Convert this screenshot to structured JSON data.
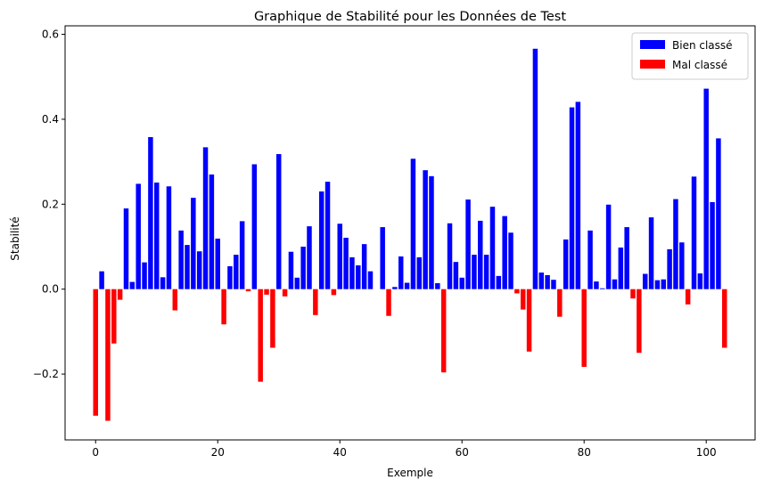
{
  "chart_data": {
    "type": "bar",
    "title": "Graphique de Stabilité pour les Données de Test",
    "xlabel": "Exemple",
    "ylabel": "Stabilité",
    "xlim": [
      -5,
      108
    ],
    "ylim": [
      -0.355,
      0.62
    ],
    "xticks": [
      0,
      20,
      40,
      60,
      80,
      100
    ],
    "xtick_labels": [
      "0",
      "20",
      "40",
      "60",
      "80",
      "100"
    ],
    "yticks": [
      -0.2,
      0.0,
      0.2,
      0.4,
      0.6
    ],
    "ytick_labels": [
      "−0.2",
      "0.0",
      "0.2",
      "0.4",
      "0.6"
    ],
    "grid": false,
    "legend_position": "top-right",
    "colors": {
      "Bien classé": "#0000ff",
      "Mal classé": "#ff0000"
    },
    "series": [
      {
        "name": "Bien classé",
        "x": [
          1,
          5,
          6,
          7,
          8,
          9,
          10,
          11,
          12,
          14,
          15,
          16,
          17,
          18,
          19,
          20,
          22,
          23,
          24,
          26,
          30,
          32,
          33,
          34,
          35,
          37,
          38,
          40,
          41,
          42,
          43,
          44,
          45,
          47,
          49,
          50,
          51,
          52,
          53,
          54,
          55,
          56,
          58,
          59,
          60,
          61,
          62,
          63,
          64,
          65,
          66,
          67,
          68,
          72,
          73,
          74,
          75,
          77,
          78,
          79,
          81,
          82,
          83,
          84,
          85,
          86,
          87,
          90,
          91,
          92,
          93,
          94,
          95,
          96,
          98,
          99,
          100,
          101,
          102
        ],
        "values": [
          0.042,
          0.19,
          0.017,
          0.248,
          0.063,
          0.358,
          0.251,
          0.028,
          0.242,
          0.138,
          0.104,
          0.215,
          0.089,
          0.334,
          0.27,
          0.119,
          0.054,
          0.081,
          0.16,
          0.294,
          0.318,
          0.088,
          0.027,
          0.1,
          0.148,
          0.23,
          0.253,
          0.154,
          0.121,
          0.075,
          0.056,
          0.106,
          0.042,
          0.146,
          0.005,
          0.077,
          0.015,
          0.307,
          0.075,
          0.28,
          0.266,
          0.014,
          0.155,
          0.064,
          0.027,
          0.211,
          0.081,
          0.161,
          0.081,
          0.194,
          0.031,
          0.172,
          0.133,
          0.566,
          0.039,
          0.033,
          0.022,
          0.117,
          0.428,
          0.441,
          0.138,
          0.018,
          0.002,
          0.199,
          0.023,
          0.098,
          0.146,
          0.036,
          0.169,
          0.021,
          0.023,
          0.094,
          0.212,
          0.11,
          0.265,
          0.037,
          0.472,
          0.205,
          0.355
        ]
      },
      {
        "name": "Mal classé",
        "x": [
          0,
          2,
          3,
          4,
          13,
          21,
          25,
          27,
          28,
          29,
          31,
          36,
          39,
          48,
          57,
          69,
          70,
          71,
          76,
          80,
          88,
          89,
          97,
          103
        ],
        "values": [
          -0.298,
          -0.31,
          -0.128,
          -0.025,
          -0.05,
          -0.083,
          -0.005,
          -0.218,
          -0.013,
          -0.138,
          -0.017,
          -0.061,
          -0.014,
          -0.063,
          -0.196,
          -0.01,
          -0.048,
          -0.147,
          -0.065,
          -0.183,
          -0.022,
          -0.15,
          -0.036,
          -0.138
        ]
      }
    ]
  }
}
